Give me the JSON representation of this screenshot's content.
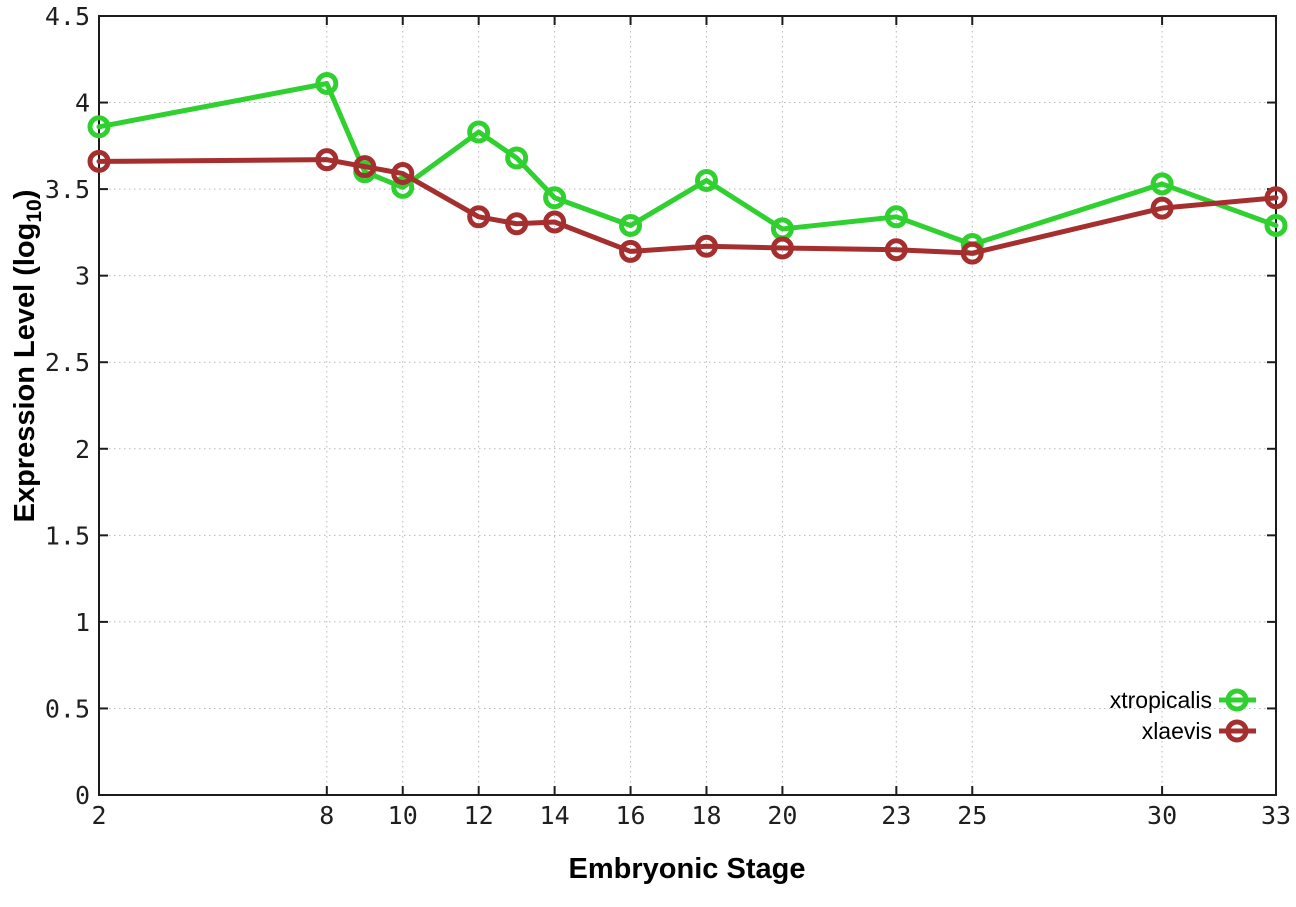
{
  "chart_data": {
    "type": "line",
    "title": "",
    "xlabel": "Embryonic Stage",
    "ylabel": "Expression Level (log10)",
    "ylabel_parts": {
      "main": "Expression Level (log",
      "sub": "10",
      "close": ")"
    },
    "x": [
      2,
      8,
      9,
      10,
      12,
      13,
      14,
      16,
      18,
      20,
      23,
      25,
      30,
      33
    ],
    "series": [
      {
        "name": "xtropicalis",
        "color": "#2fd02f",
        "marker": "open-circle",
        "values": [
          3.86,
          4.11,
          3.6,
          3.51,
          3.83,
          3.68,
          3.45,
          3.29,
          3.55,
          3.27,
          3.34,
          3.18,
          3.53,
          3.29
        ]
      },
      {
        "name": "xlaevis",
        "color": "#a52f2f",
        "marker": "open-circle",
        "values": [
          3.66,
          3.67,
          3.63,
          3.59,
          3.34,
          3.3,
          3.31,
          3.14,
          3.17,
          3.16,
          3.15,
          3.13,
          3.39,
          3.45
        ]
      }
    ],
    "xlim": [
      2,
      33
    ],
    "ylim": [
      0,
      4.5
    ],
    "xtick_values": [
      2,
      8,
      10,
      12,
      14,
      16,
      18,
      20,
      23,
      25,
      30,
      33
    ],
    "xtick_labels": [
      "2",
      "8",
      "10",
      "12",
      "14",
      "16",
      "18",
      "20",
      "23",
      "25",
      "30",
      "33"
    ],
    "ytick_values": [
      0,
      0.5,
      1,
      1.5,
      2,
      2.5,
      3,
      3.5,
      4,
      4.5
    ],
    "ytick_labels": [
      "0",
      "0.5",
      "1",
      "1.5",
      "2",
      "2.5",
      "3",
      "3.5",
      "4",
      "4.5"
    ],
    "grid": true,
    "legend_position": "inside-bottom-right",
    "colors": {
      "background": "#ffffff",
      "border": "#1c1c1c",
      "grid": "#b8b8b8",
      "tick_text": "#1f1f1f"
    }
  }
}
